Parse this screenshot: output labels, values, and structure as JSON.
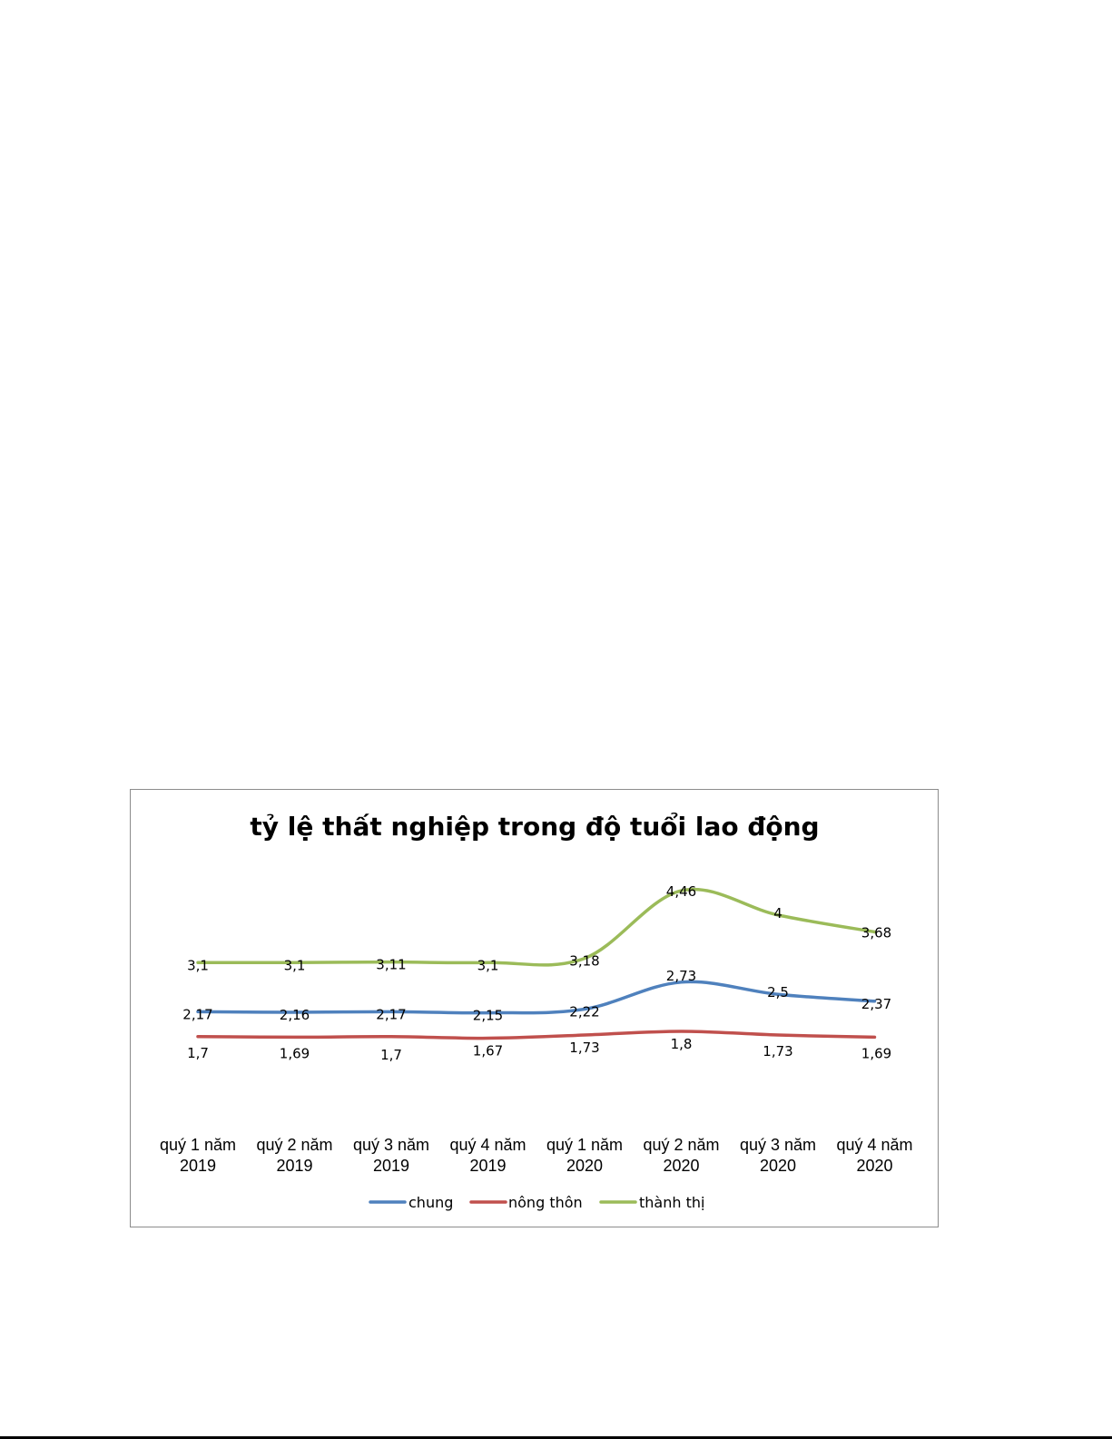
{
  "chart_data": {
    "type": "line",
    "title": "tỷ lệ thất nghiệp trong độ tuổi lao động",
    "xlabel": "",
    "ylabel": "",
    "categories": [
      [
        "quý 1 năm",
        "2019"
      ],
      [
        "quý 2 năm",
        "2019"
      ],
      [
        "quý 3 năm",
        "2019"
      ],
      [
        "quý 4 năm",
        "2019"
      ],
      [
        "quý 1 năm",
        "2020"
      ],
      [
        "quý 2 năm",
        "2020"
      ],
      [
        "quý 3 năm",
        "2020"
      ],
      [
        "quý 4 năm",
        "2020"
      ]
    ],
    "series": [
      {
        "name": "chung",
        "color": "#4f81bd",
        "values": [
          2.17,
          2.16,
          2.17,
          2.15,
          2.22,
          2.73,
          2.5,
          2.37
        ],
        "labels": [
          "2,17",
          "2,16",
          "2,17",
          "2,15",
          "2,22",
          "2,73",
          "2,5",
          "2,37"
        ]
      },
      {
        "name": "nông thôn",
        "color": "#c0504d",
        "values": [
          1.7,
          1.69,
          1.7,
          1.67,
          1.73,
          1.8,
          1.73,
          1.69
        ],
        "labels": [
          "1,7",
          "1,69",
          "1,7",
          "1,67",
          "1,73",
          "1,8",
          "1,73",
          "1,69"
        ]
      },
      {
        "name": "thành thị",
        "color": "#9bbb59",
        "values": [
          3.1,
          3.1,
          3.11,
          3.1,
          3.18,
          4.46,
          4,
          3.68
        ],
        "labels": [
          "3,1",
          "3,1",
          "3,11",
          "3,1",
          "3,18",
          "4,46",
          "4",
          "3,68"
        ]
      }
    ],
    "legend_position": "bottom",
    "grid": false,
    "smooth": true
  }
}
